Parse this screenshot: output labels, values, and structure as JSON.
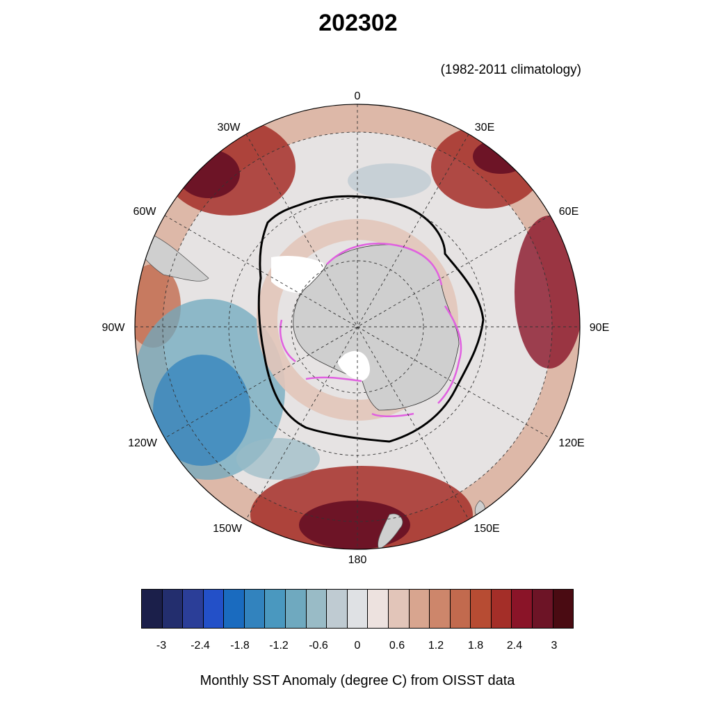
{
  "title": "202302",
  "subtitle": "(1982-2011 climatology)",
  "longitude_labels": [
    "0",
    "30E",
    "60E",
    "90E",
    "120E",
    "150E",
    "180",
    "150W",
    "120W",
    "90W",
    "60W",
    "30W"
  ],
  "colorbar": {
    "colors": [
      "#1b1f4a",
      "#232e6e",
      "#2b3e98",
      "#2350c8",
      "#1a6bbf",
      "#3283be",
      "#4a98bf",
      "#6fa9bf",
      "#99bbc6",
      "#bfcbd2",
      "#dfe1e4",
      "#ede2df",
      "#e2c5b9",
      "#d8a58f",
      "#cd866b",
      "#c26a4e",
      "#b74c33",
      "#a42e28",
      "#8a1428",
      "#6d1426",
      "#4a0b12"
    ],
    "tick_labels": [
      "-3",
      "-2.4",
      "-1.8",
      "-1.2",
      "-0.6",
      "0",
      "0.6",
      "1.2",
      "1.8",
      "2.4",
      "3"
    ]
  },
  "caption": "Monthly SST Anomaly (degree C) from OISST data",
  "map": {
    "projection": "south-polar-stereographic",
    "anomaly_colors": {
      "strong_warm": "#8a1428",
      "warm": "#c26a4e",
      "mild_warm": "#e2c5b9",
      "neutral": "#e6e3e3",
      "mild_cool": "#bfcbd2",
      "cool": "#4a98bf",
      "strong_cool": "#1a6bbf"
    },
    "land_color": "#cfcfcf",
    "sea_ice_extent_line": "black contour",
    "climatological_ice_edge_line": "magenta contour"
  }
}
